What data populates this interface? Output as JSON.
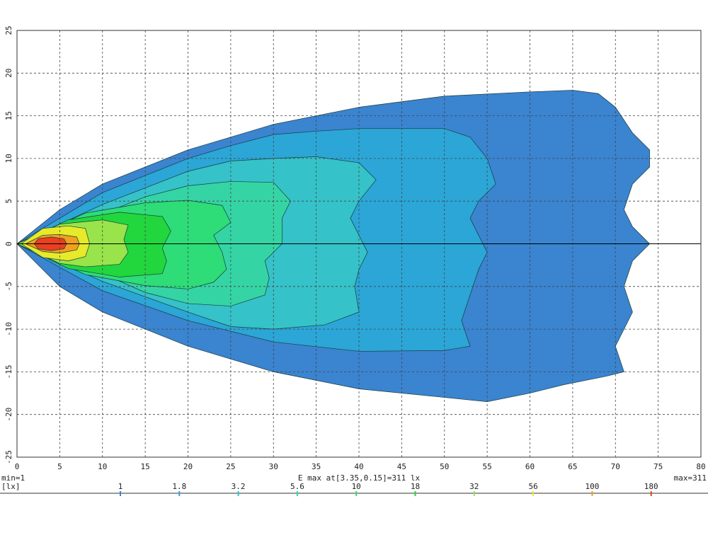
{
  "chart_data": {
    "type": "contour",
    "xlim": [
      0,
      80
    ],
    "ylim": [
      -25,
      25
    ],
    "xticks": [
      0,
      5,
      10,
      15,
      20,
      25,
      30,
      35,
      40,
      45,
      50,
      55,
      60,
      65,
      70,
      75,
      80
    ],
    "yticks": [
      -25,
      -20,
      -15,
      -10,
      -5,
      0,
      5,
      10,
      15,
      20,
      25
    ],
    "grid": true,
    "min_label": "min=1",
    "max_label": "max=311",
    "emax_label": "E max at[3.35,0.15]=311 lx",
    "unit": "[lx]",
    "levels": [
      {
        "value": 1,
        "color": "#3a84d0",
        "points": [
          [
            0,
            0
          ],
          [
            5,
            4
          ],
          [
            10,
            7
          ],
          [
            20,
            11
          ],
          [
            30,
            14
          ],
          [
            40,
            16
          ],
          [
            50,
            17.3
          ],
          [
            60,
            17.8
          ],
          [
            65,
            18
          ],
          [
            68,
            17.6
          ],
          [
            70,
            16
          ],
          [
            72,
            13
          ],
          [
            74,
            11
          ],
          [
            74,
            9
          ],
          [
            72,
            7
          ],
          [
            71,
            4
          ],
          [
            72,
            2
          ],
          [
            74,
            0
          ],
          [
            72,
            -2
          ],
          [
            71,
            -5
          ],
          [
            72,
            -8
          ],
          [
            71,
            -10
          ],
          [
            70,
            -12
          ],
          [
            71,
            -15
          ],
          [
            69,
            -15.5
          ],
          [
            64,
            -16.5
          ],
          [
            60,
            -17.5
          ],
          [
            55,
            -18.5
          ],
          [
            50,
            -18
          ],
          [
            40,
            -17
          ],
          [
            30,
            -15
          ],
          [
            20,
            -12
          ],
          [
            10,
            -8
          ],
          [
            5,
            -5
          ]
        ]
      },
      {
        "value": 1.8,
        "color": "#2ba6d6",
        "points": [
          [
            0,
            0
          ],
          [
            10,
            6
          ],
          [
            20,
            10
          ],
          [
            25,
            11.5
          ],
          [
            30,
            12.8
          ],
          [
            35,
            13.2
          ],
          [
            40,
            13.5
          ],
          [
            45,
            13.5
          ],
          [
            50,
            13.5
          ],
          [
            53,
            12.5
          ],
          [
            55,
            10
          ],
          [
            56,
            7
          ],
          [
            54,
            5
          ],
          [
            53,
            3
          ],
          [
            54,
            1
          ],
          [
            55,
            -1
          ],
          [
            54,
            -3
          ],
          [
            53,
            -6
          ],
          [
            52,
            -9
          ],
          [
            53,
            -12
          ],
          [
            50,
            -12.5
          ],
          [
            40,
            -12.6
          ],
          [
            30,
            -11.5
          ],
          [
            20,
            -9
          ],
          [
            10,
            -5.5
          ]
        ]
      },
      {
        "value": 3.2,
        "color": "#35c2c8",
        "points": [
          [
            0,
            0
          ],
          [
            10,
            4.6
          ],
          [
            20,
            8.5
          ],
          [
            25,
            9.7
          ],
          [
            30,
            10
          ],
          [
            35,
            10.2
          ],
          [
            40,
            9.5
          ],
          [
            42,
            7.5
          ],
          [
            40,
            5
          ],
          [
            39,
            3
          ],
          [
            40,
            1
          ],
          [
            41,
            -1
          ],
          [
            40,
            -3
          ],
          [
            39.5,
            -5
          ],
          [
            40,
            -8
          ],
          [
            36,
            -9.5
          ],
          [
            30,
            -10
          ],
          [
            25,
            -9.7
          ],
          [
            20,
            -8
          ],
          [
            10,
            -4.4
          ]
        ]
      },
      {
        "value": 5.6,
        "color": "#35d4a4",
        "points": [
          [
            0,
            0
          ],
          [
            10,
            3.5
          ],
          [
            15,
            5.5
          ],
          [
            20,
            6.8
          ],
          [
            25,
            7.3
          ],
          [
            30,
            7.2
          ],
          [
            32,
            5
          ],
          [
            31,
            3
          ],
          [
            31,
            0
          ],
          [
            29,
            -2
          ],
          [
            29.5,
            -4
          ],
          [
            29,
            -6
          ],
          [
            25,
            -7.3
          ],
          [
            20,
            -7
          ],
          [
            15,
            -5.7
          ],
          [
            10,
            -3.5
          ]
        ]
      },
      {
        "value": 10,
        "color": "#2edc78",
        "points": [
          [
            0,
            0
          ],
          [
            8,
            3.6
          ],
          [
            15,
            4.8
          ],
          [
            20,
            5.1
          ],
          [
            24,
            4.5
          ],
          [
            25,
            2.5
          ],
          [
            23,
            1
          ],
          [
            24,
            -1
          ],
          [
            24.5,
            -3
          ],
          [
            23,
            -4.5
          ],
          [
            20,
            -5.3
          ],
          [
            15,
            -4.9
          ],
          [
            8,
            -3.6
          ]
        ]
      },
      {
        "value": 18,
        "color": "#22d63e",
        "points": [
          [
            0,
            0
          ],
          [
            6,
            2.8
          ],
          [
            12,
            3.7
          ],
          [
            17,
            3.2
          ],
          [
            18,
            1.5
          ],
          [
            17,
            -0.5
          ],
          [
            17.5,
            -2
          ],
          [
            17,
            -3.5
          ],
          [
            12,
            -3.9
          ],
          [
            6,
            -2.9
          ]
        ]
      },
      {
        "value": 32,
        "color": "#98e44a",
        "points": [
          [
            0,
            0
          ],
          [
            5,
            2.3
          ],
          [
            10,
            2.8
          ],
          [
            13,
            2.2
          ],
          [
            12.5,
            0.5
          ],
          [
            13,
            -1
          ],
          [
            12,
            -2.4
          ],
          [
            8,
            -2.7
          ],
          [
            5,
            -2.3
          ]
        ]
      },
      {
        "value": 56,
        "color": "#e6ea2a",
        "points": [
          [
            0.5,
            0
          ],
          [
            3,
            1.8
          ],
          [
            6,
            2.1
          ],
          [
            8,
            1.8
          ],
          [
            8.5,
            0
          ],
          [
            8,
            -1.5
          ],
          [
            6,
            -2
          ],
          [
            3,
            -1.6
          ]
        ]
      },
      {
        "value": 100,
        "color": "#f0a020",
        "points": [
          [
            1,
            0
          ],
          [
            3,
            1
          ],
          [
            5,
            1.1
          ],
          [
            7,
            0.8
          ],
          [
            7.3,
            0
          ],
          [
            7,
            -0.7
          ],
          [
            5,
            -1.1
          ],
          [
            3,
            -0.9
          ]
        ]
      },
      {
        "value": 180,
        "color": "#e84020",
        "points": [
          [
            2,
            0
          ],
          [
            2.5,
            0.6
          ],
          [
            4,
            0.8
          ],
          [
            5.5,
            0.6
          ],
          [
            5.8,
            0
          ],
          [
            5.5,
            -0.6
          ],
          [
            4,
            -0.8
          ],
          [
            2.5,
            -0.6
          ]
        ]
      }
    ]
  }
}
